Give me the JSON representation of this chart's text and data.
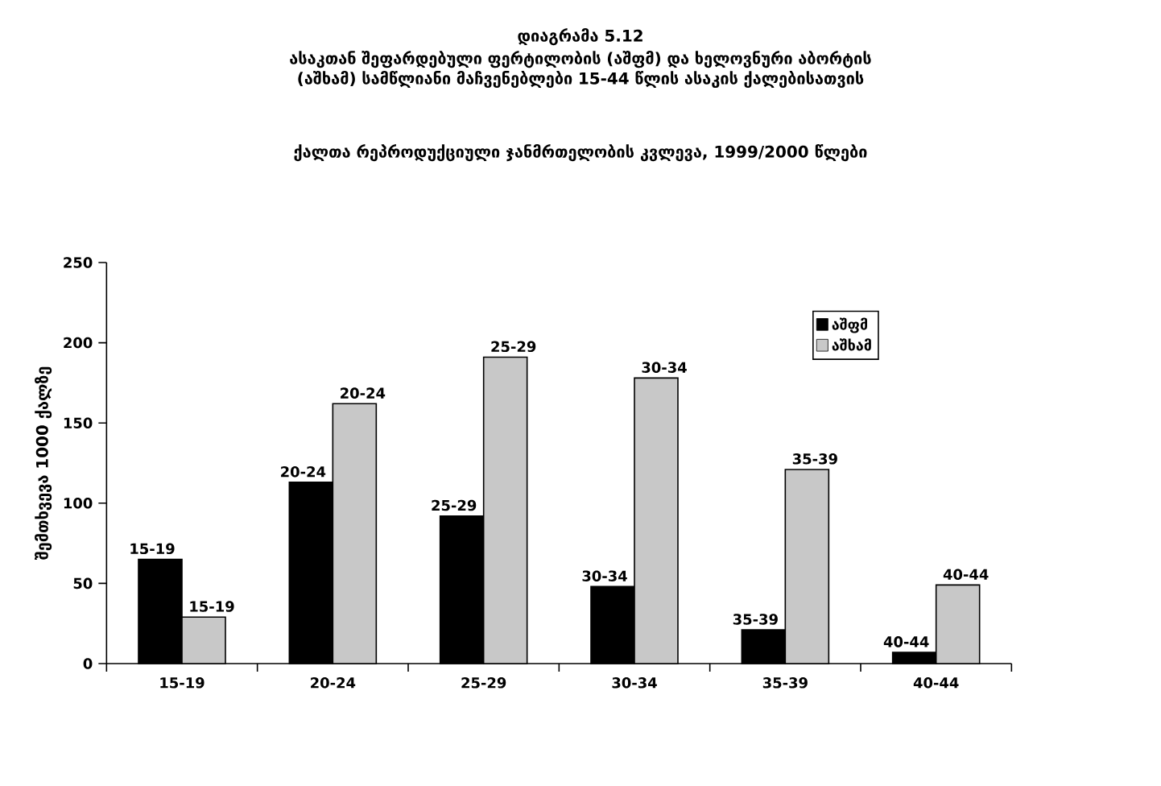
{
  "chart_data": {
    "type": "bar",
    "title": "დიაგრამა 5.12",
    "subtitle": "ასაკთან შეფარდებული ფერტილობის (აშფმ) და ხელოვნური აბორტის (აშხამ) სამწლიანი მაჩვენებლები 15-44 წლის ასაკის ქალებისათვის",
    "annotations": [
      "ქალთა რეპროდუქციული ჯანმრთელობის კვლევა, 1999/2000 წლები"
    ],
    "ylabel": "შემთხვევა 1000 ქალზე",
    "categories": [
      "15-19",
      "20-24",
      "25-29",
      "30-34",
      "35-39",
      "40-44"
    ],
    "series": [
      {
        "name": "აშფმ",
        "color": "#000000",
        "values": [
          65,
          113,
          92,
          48,
          21,
          7
        ],
        "value_labels": [
          "15-19",
          "20-24",
          "25-29",
          "30-34",
          "35-39",
          "40-44"
        ]
      },
      {
        "name": "აშხამ",
        "color": "#c8c8c8",
        "values": [
          29,
          162,
          191,
          178,
          121,
          49
        ],
        "value_labels": [
          "15-19",
          "20-24",
          "25-29",
          "30-34",
          "35-39",
          "40-44"
        ]
      }
    ],
    "ylim": [
      0,
      250
    ],
    "yticks": [
      0,
      50,
      100,
      150,
      200,
      250
    ],
    "legend": "top right",
    "grid": false
  }
}
